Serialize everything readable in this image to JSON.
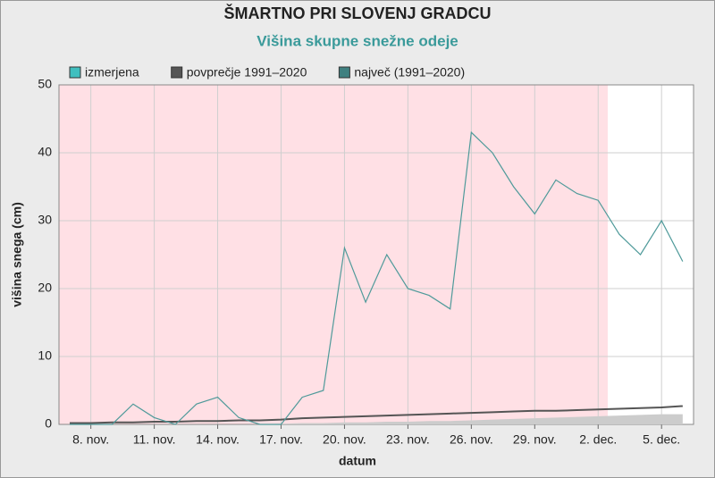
{
  "chart_data": {
    "type": "line",
    "title": "ŠMARTNO PRI SLOVENJ GRADCU",
    "subtitle": "Višina skupne snežne odeje",
    "xlabel": "datum",
    "ylabel": "višina snega (cm)",
    "categories": [
      null,
      "8. nov.",
      null,
      null,
      "11. nov.",
      null,
      null,
      "14. nov.",
      null,
      null,
      "17. nov.",
      null,
      null,
      "20. nov.",
      null,
      null,
      "23. nov.",
      null,
      null,
      "26. nov.",
      null,
      null,
      "29. nov.",
      null,
      null,
      "2. dec.",
      null,
      null,
      "5. dec.",
      null
    ],
    "series": [
      {
        "name": "izmerjena",
        "color": "#4f9a9a",
        "swatch": "#40bfbf",
        "values": [
          0,
          0,
          0,
          3,
          1,
          0,
          3,
          4,
          1,
          0,
          0,
          4,
          5,
          26,
          18,
          25,
          20,
          19,
          17,
          43,
          40,
          35,
          31,
          36,
          34,
          33,
          28,
          25,
          30,
          24
        ]
      },
      {
        "name": "povprečje 1991–2020",
        "color": "#555555",
        "swatch": "#555555",
        "values": [
          0.2,
          0.2,
          0.3,
          0.3,
          0.4,
          0.4,
          0.5,
          0.5,
          0.6,
          0.6,
          0.7,
          0.9,
          1.0,
          1.1,
          1.2,
          1.3,
          1.4,
          1.5,
          1.6,
          1.7,
          1.8,
          1.9,
          2.0,
          2.0,
          2.1,
          2.2,
          2.3,
          2.4,
          2.5,
          2.7
        ]
      },
      {
        "name": "največ (1991–2020)",
        "color": "#3f8080",
        "swatch": "#3f8080",
        "area_color": "#cccccc",
        "values": [
          0,
          0,
          0,
          0,
          0,
          0,
          0,
          0,
          0,
          0,
          0.1,
          0.2,
          0.2,
          0.3,
          0.3,
          0.4,
          0.4,
          0.5,
          0.5,
          0.6,
          0.7,
          0.8,
          0.9,
          1.0,
          1.1,
          1.2,
          1.3,
          1.4,
          1.5,
          1.5
        ]
      }
    ],
    "ylim": [
      0,
      50
    ],
    "yticks": [
      0,
      10,
      20,
      30,
      40,
      50
    ],
    "grid": true
  }
}
